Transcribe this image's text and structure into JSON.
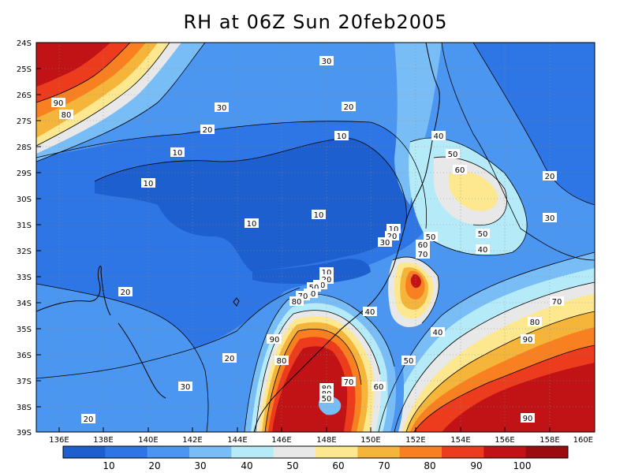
{
  "title": "RH at 06Z Sun 20feb2005",
  "map": {
    "lat_labels": [
      "24S",
      "25S",
      "26S",
      "27S",
      "28S",
      "29S",
      "30S",
      "31S",
      "32S",
      "33S",
      "34S",
      "35S",
      "36S",
      "37S",
      "38S",
      "39S"
    ],
    "lon_labels": [
      "136E",
      "138E",
      "140E",
      "142E",
      "144E",
      "146E",
      "148E",
      "150E",
      "152E",
      "154E",
      "156E",
      "158E",
      "160E"
    ],
    "contour_labels": [
      "30",
      "90",
      "80",
      "30",
      "20",
      "20",
      "10",
      "10",
      "10",
      "40",
      "50",
      "60",
      "20",
      "10",
      "10",
      "10",
      "20",
      "30",
      "50",
      "60",
      "70",
      "50",
      "40",
      "30",
      "10",
      "20",
      "30",
      "40",
      "50",
      "60",
      "70",
      "80",
      "90",
      "80",
      "20",
      "20",
      "30",
      "20",
      "40",
      "50",
      "60",
      "70",
      "80",
      "90",
      "70",
      "80",
      "90",
      "90",
      "80",
      "50"
    ]
  },
  "colorbar": {
    "labels": [
      "10",
      "20",
      "30",
      "40",
      "50",
      "60",
      "70",
      "80",
      "90",
      "100"
    ],
    "colors": [
      "#1e5fd0",
      "#2e76e6",
      "#4a96f0",
      "#79bdf6",
      "#b5ebf8",
      "#e8e8e8",
      "#fde890",
      "#f5b43a",
      "#f88020",
      "#ed3c1d",
      "#c11216",
      "#9c0b10"
    ]
  }
}
